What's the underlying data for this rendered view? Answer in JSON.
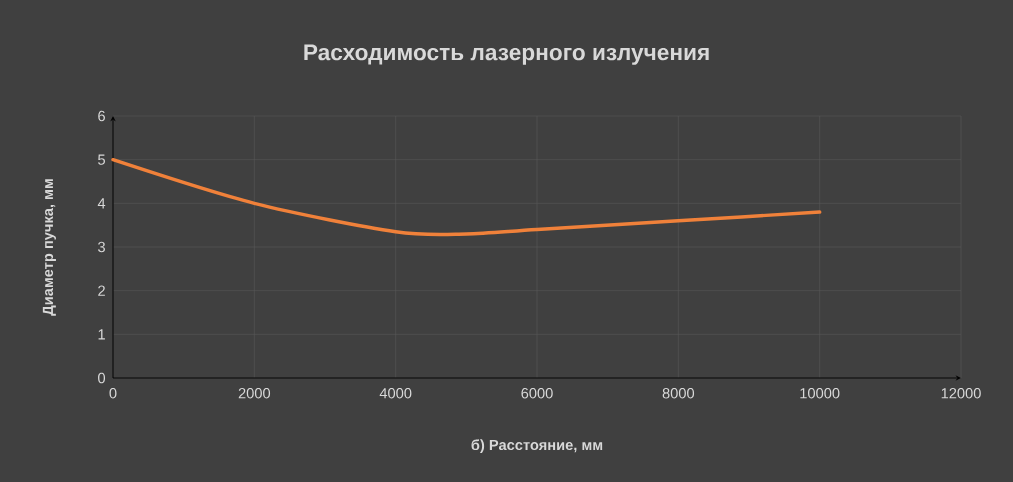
{
  "chart_data": {
    "type": "line",
    "title": "Расходимость лазерного излучения",
    "xlabel": "б) Расстояние, мм",
    "ylabel": "Диаметр пучка, мм",
    "x": [
      0,
      2000,
      4000,
      5000,
      6000,
      8000,
      10000
    ],
    "series": [
      {
        "color": "#f0813a",
        "values": [
          5,
          4,
          3.35,
          3.3,
          3.4,
          3.6,
          3.8
        ]
      }
    ],
    "xlim": [
      0,
      12000
    ],
    "ylim": [
      0,
      6
    ],
    "xticks": [
      0,
      2000,
      4000,
      6000,
      8000,
      10000,
      12000
    ],
    "yticks": [
      0,
      1,
      2,
      3,
      4,
      5,
      6
    ],
    "grid": true,
    "marker": "none",
    "line_style": "solid"
  }
}
